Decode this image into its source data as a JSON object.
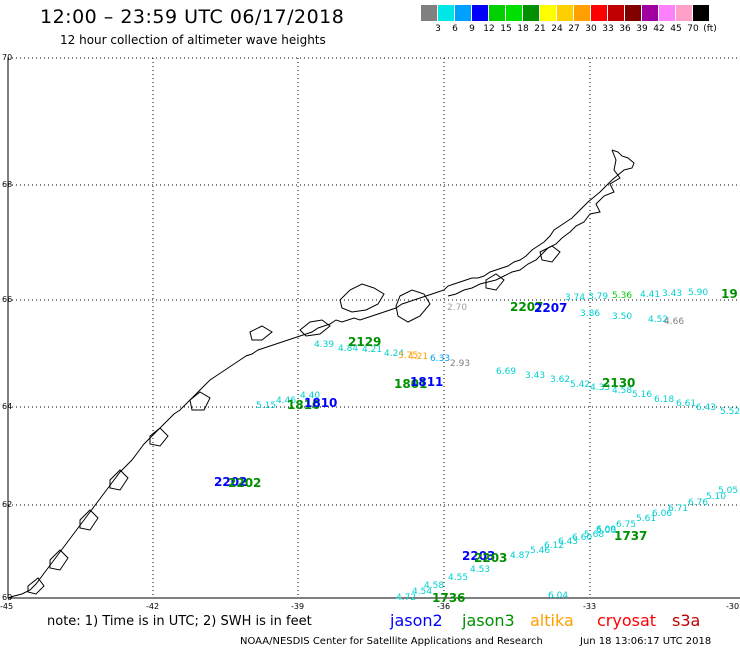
{
  "title": "12:00 – 23:59 UTC 06/17/2018",
  "subtitle": "12 hour collection of altimeter wave heights",
  "color_scale": {
    "colors": [
      "#808080",
      "#00e6e6",
      "#00a0ff",
      "#0000ff",
      "#00d000",
      "#00e000",
      "#009000",
      "#ffff00",
      "#ffd000",
      "#ffa000",
      "#ff0000",
      "#c00000",
      "#800000",
      "#a000a0",
      "#ff80ff",
      "#ffa0c8",
      "#000000"
    ],
    "labels": [
      "3",
      "6",
      "9",
      "12",
      "15",
      "18",
      "21",
      "24",
      "27",
      "30",
      "33",
      "36",
      "39",
      "42",
      "45",
      "70",
      "(ft)"
    ]
  },
  "lat_labels": [
    "70",
    "68",
    "66",
    "64",
    "62",
    "60"
  ],
  "lon_labels": [
    "-45",
    "-42",
    "-39",
    "-36",
    "-33",
    "-30"
  ],
  "satellites": [
    {
      "name": "jason2",
      "color": "#0000ff"
    },
    {
      "name": "jason3",
      "color": "#009000"
    },
    {
      "name": "altika",
      "color": "#ffa000"
    },
    {
      "name": "cryosat",
      "color": "#ff0000"
    },
    {
      "name": "s3a",
      "color": "#c00000"
    }
  ],
  "note": "note:  1) Time is in UTC;  2) SWH is in feet",
  "credit_left": "NOAA/NESDIS Center for Satellite Applications and Research",
  "credit_right": "Jun 18 13:06:17 UTC 2018",
  "pass_times": [
    {
      "text": "2202",
      "color": "#0000ff"
    },
    {
      "text": "2202",
      "color": "#009000"
    },
    {
      "text": "2129",
      "color": "#009000"
    },
    {
      "text": "1801",
      "color": "#009000"
    },
    {
      "text": "1811",
      "color": "#0000ff"
    },
    {
      "text": "1810",
      "color": "#009000"
    },
    {
      "text": "1810",
      "color": "#0000ff"
    },
    {
      "text": "2130",
      "color": "#009000"
    },
    {
      "text": "2207",
      "color": "#009000"
    },
    {
      "text": "2207",
      "color": "#0000ff"
    },
    {
      "text": "19",
      "color": "#009000"
    },
    {
      "text": "2203",
      "color": "#0000ff"
    },
    {
      "text": "2203",
      "color": "#009000"
    },
    {
      "text": "1736",
      "color": "#009000"
    },
    {
      "text": "1737",
      "color": "#009000"
    }
  ],
  "wave_labels": [
    "4.39",
    "4.84",
    "4.21",
    "4.24",
    "3.75",
    "4.21",
    "6.33",
    "3.43",
    "3.62",
    "5.42",
    "4.33",
    "4.58",
    "5.16",
    "6.18",
    "6.61",
    "6.43",
    "5.52",
    "5.15",
    "4.46",
    "4.40",
    "6.69",
    "2.70",
    "2.93",
    "5.36",
    "4.41",
    "3.43",
    "5.90",
    "3.74",
    "3.79",
    "4.52",
    "4.66",
    "3.86",
    "3.50",
    "4.87",
    "5.46",
    "6.12",
    "6.43",
    "6.60",
    "5.68",
    "5.00",
    "6.09",
    "6.75",
    "5.61",
    "6.06",
    "6.71",
    "6.76",
    "5.10",
    "4.72",
    "4.54",
    "4.58",
    "4.55",
    "4.53",
    "6.04",
    "5.05"
  ]
}
